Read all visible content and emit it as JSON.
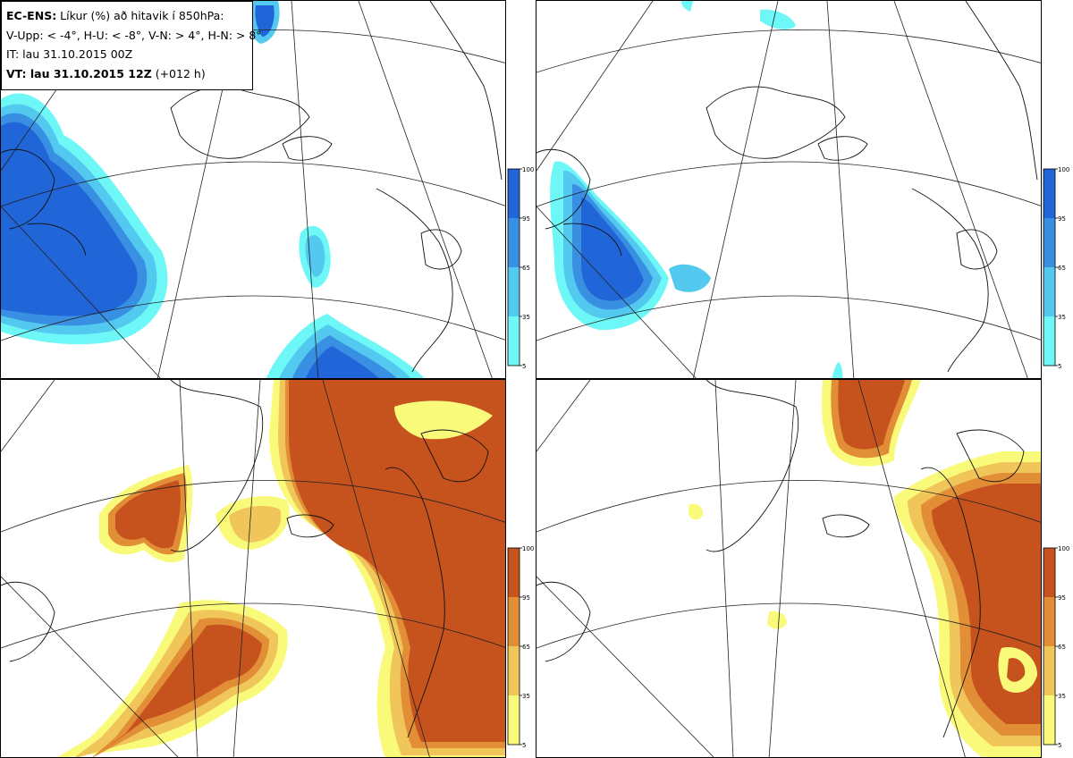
{
  "legend": {
    "line1_bold": "EC-ENS:",
    "line1_rest": " Líkur (%) að hitavik í 850hPa:",
    "line2": "V-Upp: < -4°, H-U: < -8°, V-N: > 4°, H-N: > 8°",
    "line3": "IT: lau 31.10.2015 00Z",
    "line4_bold": "VT: lau 31.10.2015 12Z",
    "line4_rest": " (+012 h)"
  },
  "colorbar_ticks": [
    "100",
    "95",
    "65",
    "35",
    "5"
  ],
  "colors": {
    "cold": [
      "#6ef7f7",
      "#53c9f0",
      "#3990e3",
      "#2166d8"
    ],
    "warm": [
      "#fafa7a",
      "#f0c55a",
      "#e18e37",
      "#c6521e"
    ],
    "coast": "#111111",
    "grid": "#222222"
  },
  "panels": [
    {
      "id": "top-left",
      "variable": "V-Upp"
    },
    {
      "id": "top-right",
      "variable": "H-U"
    },
    {
      "id": "bottom-left",
      "variable": "V-N"
    },
    {
      "id": "bottom-right",
      "variable": "H-N"
    }
  ]
}
